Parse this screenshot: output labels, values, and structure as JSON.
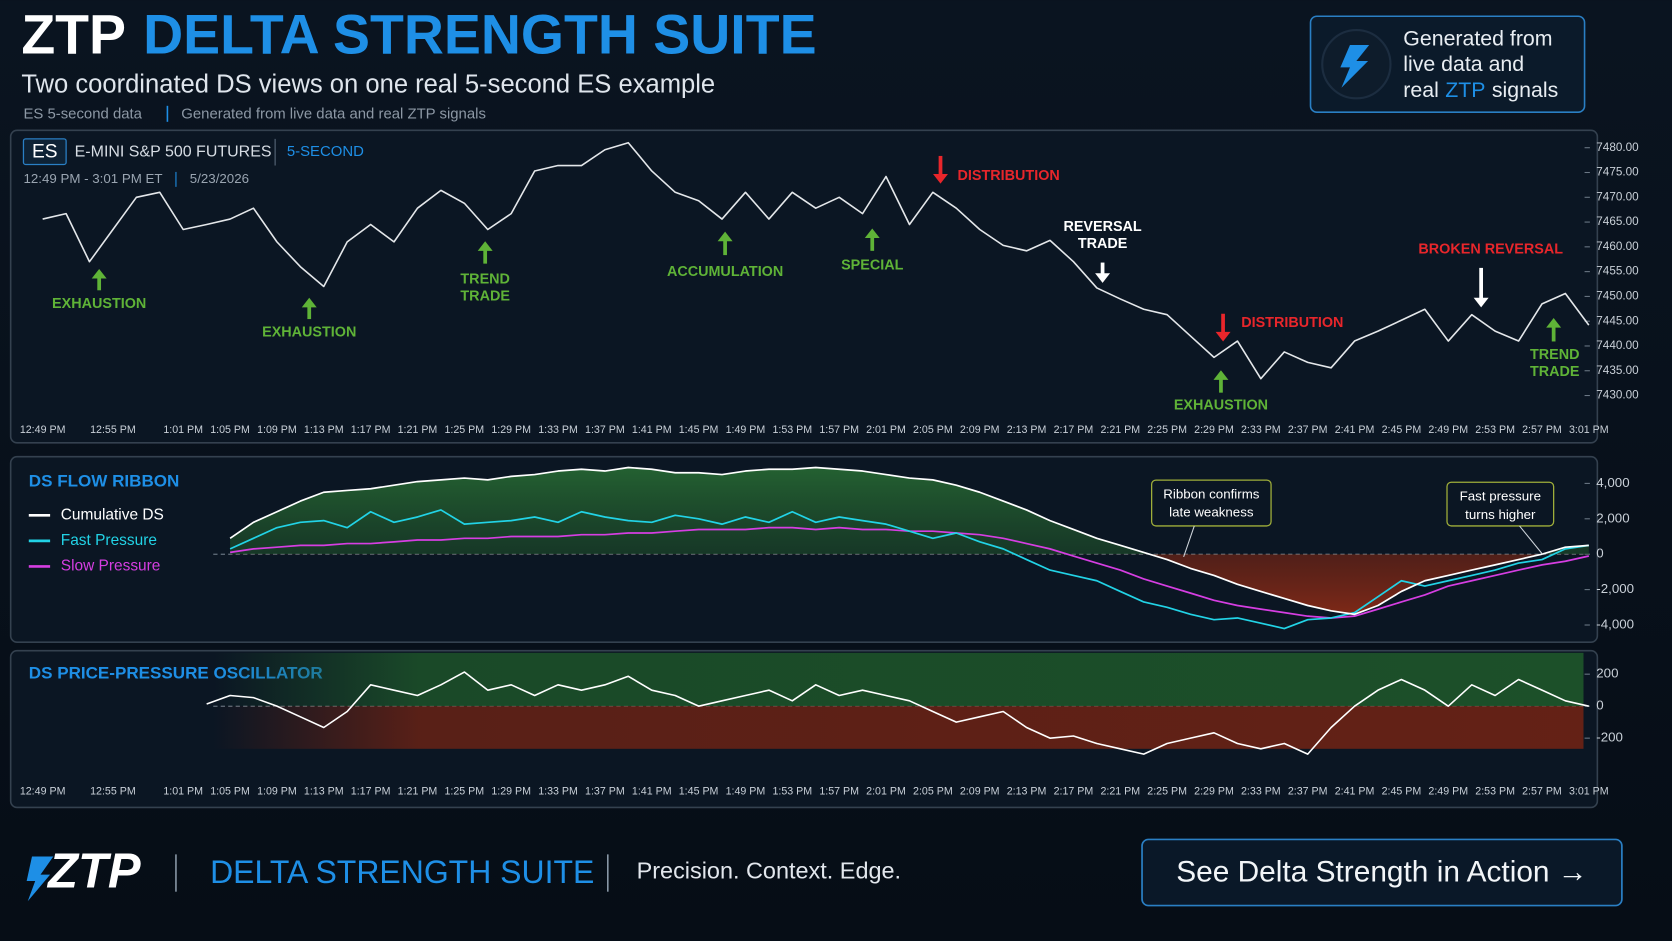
{
  "header": {
    "brand": "ZTP",
    "title": "DELTA STRENGTH SUITE",
    "subtitle": "Two coordinated DS views on one real 5-second ES example",
    "meta": [
      "ES 5-second data",
      "Generated from live data and real ZTP signals"
    ],
    "badge": {
      "lines": [
        "Generated from",
        "live data and"
      ],
      "prefix": "real",
      "highlight": "ZTP",
      "suffix": "signals"
    }
  },
  "chart_data": [
    {
      "type": "line",
      "symbol": "ES",
      "instrument": "E-MINI S&P 500 FUTURES",
      "interval": "5-SECOND",
      "session": "12:49 PM - 3:01 PM ET",
      "date": "5/23/2026",
      "categories": [
        "12:49 PM",
        null,
        null,
        "12:55 PM",
        null,
        null,
        "1:01 PM",
        null,
        "1:05 PM",
        null,
        "1:09 PM",
        null,
        "1:13 PM",
        null,
        "1:17 PM",
        null,
        "1:21 PM",
        null,
        "1:25 PM",
        null,
        "1:29 PM",
        null,
        "1:33 PM",
        null,
        "1:37 PM",
        null,
        "1:41 PM",
        null,
        "1:45 PM",
        null,
        "1:49 PM",
        null,
        "1:53 PM",
        null,
        "1:57 PM",
        null,
        "2:01 PM",
        null,
        "2:05 PM",
        null,
        "2:09 PM",
        null,
        "2:13 PM",
        null,
        "2:17 PM",
        null,
        "2:21 PM",
        null,
        "2:25 PM",
        null,
        "2:29 PM",
        null,
        "2:33 PM",
        null,
        "2:37 PM",
        null,
        "2:41 PM",
        null,
        "2:45 PM",
        null,
        "2:49 PM",
        null,
        "2:53 PM",
        null,
        "2:57 PM",
        null,
        "3:01 PM"
      ],
      "values": [
        7465.6,
        7466.7,
        7457,
        7463.5,
        7470,
        7471,
        7463.5,
        7464.5,
        7465.6,
        7467.8,
        7461,
        7456,
        7452,
        7461,
        7464.5,
        7461,
        7467.8,
        7471.4,
        7468.8,
        7463.5,
        7466.7,
        7475.3,
        7476.4,
        7476.4,
        7479.6,
        7481,
        7475.3,
        7471,
        7469.3,
        7465.6,
        7471,
        7465.6,
        7471,
        7467.8,
        7470,
        7466.7,
        7474.2,
        7464.5,
        7471,
        7467.8,
        7463.5,
        7460.3,
        7459.2,
        7461.3,
        7457,
        7451.7,
        7449.5,
        7447.4,
        7446.3,
        7442,
        7437.7,
        7441,
        7433.4,
        7438.8,
        7436.7,
        7435.6,
        7441,
        7443,
        7445.2,
        7447.4,
        7441,
        7446.3,
        7443,
        7441,
        7448.5,
        7450.6,
        7444.2
      ],
      "color": "#e4e7ea",
      "ylim": [
        7428,
        7482
      ],
      "yticks": [
        {
          "value": 7430,
          "label": "7430.00"
        },
        {
          "value": 7435,
          "label": "7435.00"
        },
        {
          "value": 7440,
          "label": "7440.00"
        },
        {
          "value": 7445,
          "label": "7445.00"
        },
        {
          "value": 7450,
          "label": "7450.00"
        },
        {
          "value": 7455,
          "label": "7455.00"
        },
        {
          "value": 7460,
          "label": "7460.00"
        },
        {
          "value": 7465,
          "label": "7465.00"
        },
        {
          "value": 7470,
          "label": "7470.00"
        },
        {
          "value": 7475,
          "label": "7475.00"
        },
        {
          "value": 7480,
          "label": "7480.00"
        }
      ],
      "annotations": [
        {
          "lines": [
            "EXHAUSTION"
          ],
          "direction": "up",
          "color": "#5fb337"
        },
        {
          "lines": [
            "EXHAUSTION"
          ],
          "direction": "up",
          "color": "#5fb337"
        },
        {
          "lines": [
            "TREND",
            "TRADE"
          ],
          "direction": "up",
          "color": "#5fb337"
        },
        {
          "lines": [
            "ACCUMULATION"
          ],
          "direction": "up",
          "color": "#5fb337"
        },
        {
          "lines": [
            "SPECIAL"
          ],
          "direction": "up",
          "color": "#5fb337"
        },
        {
          "lines": [
            "DISTRIBUTION"
          ],
          "direction": "down",
          "color": "#e8262b"
        },
        {
          "lines": [
            "REVERSAL",
            "TRADE"
          ],
          "direction": "down",
          "color": "#ffffff"
        },
        {
          "lines": [
            "DISTRIBUTION"
          ],
          "direction": "down",
          "color": "#e8262b"
        },
        {
          "lines": [
            "EXHAUSTION"
          ],
          "direction": "up",
          "color": "#5fb337"
        },
        {
          "lines": [
            "BROKEN REVERSAL"
          ],
          "direction": "down",
          "color": "#e8262b",
          "arrow_color": "#ffffff"
        },
        {
          "lines": [
            "TREND",
            "TRADE"
          ],
          "direction": "up",
          "color": "#5fb337"
        }
      ]
    },
    {
      "type": "line",
      "title": "DS FLOW RIBBON",
      "series": [
        {
          "name": "Cumulative DS",
          "color": "#ffffff",
          "values": [
            null,
            null,
            null,
            null,
            null,
            null,
            null,
            null,
            900,
            1800,
            2400,
            3000,
            3500,
            3600,
            3700,
            3900,
            4100,
            4200,
            4300,
            4200,
            4400,
            4500,
            4700,
            4800,
            4700,
            4900,
            4800,
            4600,
            4600,
            4500,
            4700,
            4800,
            4800,
            4900,
            4800,
            4700,
            4500,
            4300,
            4200,
            3900,
            3500,
            3000,
            2500,
            1900,
            1400,
            900,
            500,
            100,
            -300,
            -800,
            -1200,
            -1700,
            -2100,
            -2500,
            -2900,
            -3200,
            -3400,
            -2900,
            -2100,
            -1500,
            -1200,
            -900,
            -600,
            -300,
            0,
            400,
            500
          ]
        },
        {
          "name": "Fast Pressure",
          "color": "#22d3e6",
          "values": [
            null,
            null,
            null,
            null,
            null,
            null,
            null,
            null,
            300,
            900,
            1500,
            1800,
            1900,
            1500,
            2400,
            1800,
            2100,
            2500,
            1700,
            1800,
            1900,
            2100,
            1800,
            2400,
            2100,
            1900,
            1800,
            2200,
            2000,
            1700,
            2100,
            1800,
            2400,
            1800,
            2100,
            1900,
            1700,
            1300,
            900,
            1200,
            700,
            300,
            -300,
            -900,
            -1200,
            -1500,
            -2100,
            -2700,
            -3000,
            -3400,
            -3700,
            -3600,
            -3900,
            -4200,
            -3700,
            -3600,
            -3300,
            -2400,
            -1500,
            -1800,
            -1500,
            -1200,
            -900,
            -500,
            -300,
            300,
            500
          ]
        },
        {
          "name": "Slow Pressure",
          "color": "#d63ee2",
          "values": [
            null,
            null,
            null,
            null,
            null,
            null,
            null,
            null,
            100,
            300,
            400,
            500,
            500,
            600,
            600,
            700,
            800,
            800,
            900,
            900,
            1000,
            1000,
            1000,
            1100,
            1100,
            1200,
            1200,
            1300,
            1400,
            1400,
            1400,
            1500,
            1500,
            1400,
            1500,
            1400,
            1400,
            1300,
            1300,
            1200,
            1100,
            900,
            600,
            300,
            -100,
            -500,
            -900,
            -1400,
            -1800,
            -2200,
            -2600,
            -2900,
            -3100,
            -3300,
            -3500,
            -3600,
            -3500,
            -3100,
            -2700,
            -2300,
            -1800,
            -1500,
            -1200,
            -900,
            -600,
            -400,
            -100
          ]
        }
      ],
      "ylim": [
        -5000,
        5000
      ],
      "yticks": [
        {
          "value": 4000,
          "label": "4,000"
        },
        {
          "value": 2000,
          "label": "2,000"
        },
        0,
        {
          "value": -2000,
          "label": "-2,000"
        },
        {
          "value": -4000,
          "label": "-4,000"
        }
      ],
      "zero_line": true,
      "annotations": [
        {
          "lines": [
            "Ribbon confirms",
            "late weakness"
          ]
        },
        {
          "lines": [
            "Fast pressure",
            "turns higher"
          ]
        }
      ]
    },
    {
      "type": "line",
      "title": "DS PRICE-PRESSURE OSCILLATOR",
      "categories": [
        "12:49 PM",
        null,
        null,
        "12:55 PM",
        null,
        null,
        "1:01 PM",
        null,
        "1:05 PM",
        null,
        "1:09 PM",
        null,
        "1:13 PM",
        null,
        "1:17 PM",
        null,
        "1:21 PM",
        null,
        "1:25 PM",
        null,
        "1:29 PM",
        null,
        "1:33 PM",
        null,
        "1:37 PM",
        null,
        "1:41 PM",
        null,
        "1:45 PM",
        null,
        "1:49 PM",
        null,
        "1:53 PM",
        null,
        "1:57 PM",
        null,
        "2:01 PM",
        null,
        "2:05 PM",
        null,
        "2:09 PM",
        null,
        "2:13 PM",
        null,
        "2:17 PM",
        null,
        "2:21 PM",
        null,
        "2:25 PM",
        null,
        "2:29 PM",
        null,
        "2:33 PM",
        null,
        "2:37 PM",
        null,
        "2:41 PM",
        null,
        "2:45 PM",
        null,
        "2:49 PM",
        null,
        "2:53 PM",
        null,
        "2:57 PM",
        null,
        "3:01 PM"
      ],
      "values": [
        null,
        null,
        null,
        null,
        null,
        null,
        null,
        13,
        67,
        53,
        0,
        -67,
        -133,
        -33,
        133,
        100,
        67,
        133,
        213,
        100,
        133,
        67,
        133,
        100,
        133,
        187,
        100,
        67,
        0,
        33,
        67,
        100,
        33,
        133,
        67,
        100,
        67,
        33,
        -33,
        -100,
        -67,
        -33,
        -133,
        -200,
        -187,
        -233,
        -267,
        -300,
        -233,
        -200,
        -167,
        -233,
        -267,
        -233,
        -300,
        -133,
        0,
        100,
        167,
        100,
        0,
        133,
        67,
        167,
        100,
        33,
        0
      ],
      "color": "#ffffff",
      "ylim": [
        -300,
        300
      ],
      "yticks": [
        200,
        0,
        -200
      ],
      "zero_line": true
    }
  ],
  "footer": {
    "brand": "ZTP",
    "title": "DELTA STRENGTH SUITE",
    "tagline": "Precision. Context. Edge.",
    "cta": "See Delta Strength in Action →"
  }
}
